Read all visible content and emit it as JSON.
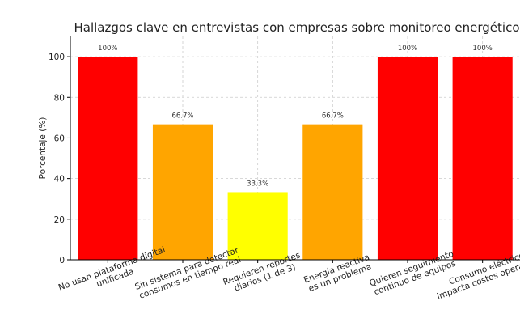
{
  "chart_data": {
    "type": "bar",
    "title": "Hallazgos clave en entrevistas con empresas sobre monitoreo energético",
    "xlabel": "",
    "ylabel": "Porcentaje (%)",
    "ylim": [
      0,
      110
    ],
    "yticks": [
      0,
      20,
      40,
      60,
      80,
      100
    ],
    "grid": true,
    "categories": [
      [
        "No usan plataforma digital",
        "unificada"
      ],
      [
        "Sin sistema para detectar",
        "consumos en tiempo real"
      ],
      [
        "Requieren reportes",
        "diarios (1 de 3)"
      ],
      [
        "Energía reactiva",
        "es un problema"
      ],
      [
        "Quieren seguimiento",
        "continuo de equipos"
      ],
      [
        "Consumo eléctrico",
        "impacta costos operativos"
      ]
    ],
    "values": [
      100,
      66.7,
      33.3,
      66.7,
      100,
      100
    ],
    "value_labels": [
      "100%",
      "66.7%",
      "33.3%",
      "66.7%",
      "100%",
      "100%"
    ],
    "colors": [
      "#ff0000",
      "#ffa500",
      "#ffff00",
      "#ffa500",
      "#ff0000",
      "#ff0000"
    ]
  }
}
